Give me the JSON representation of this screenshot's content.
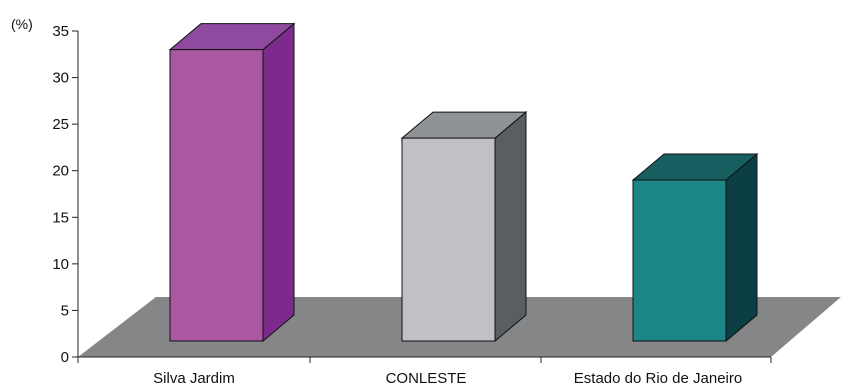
{
  "chart_data": {
    "type": "bar",
    "title": "",
    "xlabel": "",
    "ylabel": "(%)",
    "ylim": [
      0,
      35
    ],
    "yticks": [
      0,
      5,
      10,
      15,
      20,
      25,
      30,
      35
    ],
    "grid": false,
    "legend": "none",
    "style": "3d",
    "categories": [
      "Silva Jardim",
      "CONLESTE",
      "Estado do Rio de Janeiro"
    ],
    "values": [
      33,
      23.5,
      19
    ],
    "colors": {
      "bars": [
        {
          "front": "#aa58a2",
          "side": "#7d2a8d",
          "top": "#8f4a9f"
        },
        {
          "front": "#bfc1c4",
          "side": "#5a5e61",
          "top": "#8f9296"
        },
        {
          "front": "#1b8587",
          "side": "#0b3f45",
          "top": "#175e60"
        }
      ],
      "floor": "#858688"
    }
  }
}
